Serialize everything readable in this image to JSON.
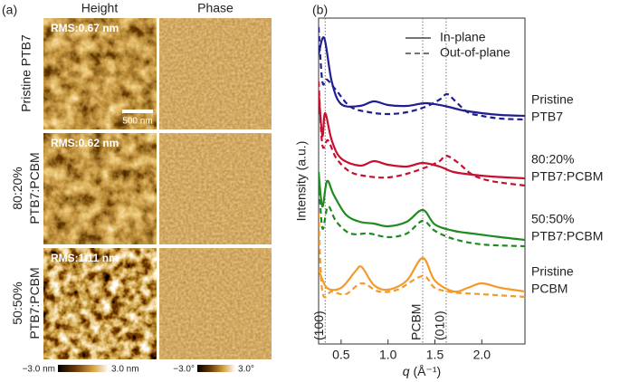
{
  "panel_a": {
    "label": "(a)",
    "columns": [
      "Height",
      "Phase"
    ],
    "rows": [
      {
        "label": [
          "Pristine PTB7"
        ],
        "rms": "RMS:0.67 nm"
      },
      {
        "label": [
          "80:20%",
          "PTB7:PCBM"
        ],
        "rms": "RMS:0.62 nm"
      },
      {
        "label": [
          "50:50%",
          "PTB7:PCBM"
        ],
        "rms": "RMS:1.11 nm"
      }
    ],
    "scale_bar": "500 nm",
    "colorbars": [
      [
        "−3.0 nm",
        "3.0 nm"
      ],
      [
        "−3.0°",
        "3.0°"
      ]
    ]
  },
  "chart_data": {
    "type": "line",
    "panel_label": "(b)",
    "xlabel": {
      "symbol": "q",
      "unit": "(Å⁻¹)"
    },
    "ylabel": "Intensity (a.u.)",
    "xlim": [
      0.26,
      2.46
    ],
    "ylim": [
      0,
      36
    ],
    "xticks": [
      0.5,
      {
        "value": 1,
        "label": "1.0"
      },
      1.5,
      {
        "value": 2,
        "label": "2.0"
      }
    ],
    "legend_position": "upper right",
    "series": [
      {
        "name": "In-plane",
        "color": "#1f1f8f",
        "dashed": false,
        "x": [
          0.26,
          0.32,
          0.4,
          0.5,
          0.7,
          0.85,
          1.0,
          1.2,
          1.4,
          1.6,
          1.8,
          2.0,
          2.2,
          2.46
        ],
        "values": [
          32,
          33.8,
          29,
          26.5,
          26.3,
          26.8,
          26.4,
          26.3,
          26.6,
          26.3,
          25.8,
          25.5,
          25.3,
          25.2
        ]
      },
      {
        "name": "Out-of-plane",
        "color": "#1f1f8f",
        "dashed": true,
        "x": [
          0.26,
          0.3,
          0.35,
          0.45,
          0.6,
          0.8,
          1.0,
          1.2,
          1.4,
          1.55,
          1.63,
          1.72,
          1.85,
          2.0,
          2.2,
          2.46
        ],
        "values": [
          35,
          29,
          29.2,
          28,
          26.2,
          25.6,
          25.4,
          25.6,
          26.2,
          27,
          27.6,
          26.8,
          25.6,
          25.2,
          24.9,
          24.8
        ]
      },
      {
        "name": "In-plane",
        "color": "#c8102e",
        "dashed": false,
        "x": [
          0.26,
          0.3,
          0.33,
          0.4,
          0.5,
          0.7,
          0.85,
          1.0,
          1.2,
          1.37,
          1.55,
          1.7,
          1.9,
          2.1,
          2.46
        ],
        "values": [
          28,
          23,
          25.5,
          22.5,
          20.5,
          19.7,
          20.2,
          19.8,
          19.6,
          20,
          19.6,
          19,
          18.7,
          18.5,
          18.3
        ]
      },
      {
        "name": "Out-of-plane",
        "color": "#c8102e",
        "dashed": true,
        "x": [
          0.26,
          0.3,
          0.36,
          0.45,
          0.6,
          0.8,
          1.0,
          1.2,
          1.4,
          1.55,
          1.62,
          1.75,
          1.9,
          2.1,
          2.46
        ],
        "values": [
          29,
          22,
          22.5,
          20.5,
          19,
          18.5,
          18.4,
          18.8,
          19.5,
          20.2,
          20.8,
          20,
          18.7,
          18,
          17.5
        ]
      },
      {
        "name": "In-plane",
        "color": "#1f8a1f",
        "dashed": false,
        "x": [
          0.26,
          0.3,
          0.35,
          0.42,
          0.55,
          0.7,
          0.85,
          1.0,
          1.2,
          1.37,
          1.5,
          1.7,
          1.9,
          2.2,
          2.46
        ],
        "values": [
          19,
          15.2,
          18,
          16.5,
          14.3,
          13.5,
          13.3,
          13,
          13.5,
          14.8,
          13.2,
          12.5,
          12.2,
          11.8,
          11.5
        ]
      },
      {
        "name": "Out-of-plane",
        "color": "#1f8a1f",
        "dashed": true,
        "x": [
          0.26,
          0.3,
          0.36,
          0.45,
          0.6,
          0.8,
          1.0,
          1.2,
          1.37,
          1.5,
          1.7,
          2.0,
          2.46
        ],
        "values": [
          19,
          12.8,
          15.2,
          13.5,
          12.2,
          12.2,
          11.8,
          12.2,
          13.6,
          12.5,
          11.6,
          11,
          10.8
        ]
      },
      {
        "name": "In-plane",
        "color": "#f39a2b",
        "dashed": false,
        "x": [
          0.26,
          0.35,
          0.5,
          0.65,
          0.72,
          0.85,
          1.0,
          1.2,
          1.37,
          1.5,
          1.7,
          1.85,
          2.0,
          2.2,
          2.46
        ],
        "values": [
          8.2,
          6.2,
          6.2,
          8,
          8.5,
          6.5,
          6,
          7,
          9.5,
          7,
          5.8,
          6.2,
          6.7,
          6.2,
          5.8
        ]
      },
      {
        "name": "Out-of-plane",
        "color": "#f39a2b",
        "dashed": true,
        "x": [
          0.26,
          0.3,
          0.4,
          0.55,
          0.72,
          0.9,
          1.1,
          1.37,
          1.5,
          1.7,
          2.0,
          2.46
        ],
        "values": [
          14.5,
          5.8,
          5.8,
          5.5,
          6.7,
          5.8,
          6,
          7.5,
          6.2,
          5.7,
          5.5,
          5.2
        ]
      }
    ],
    "sample_labels": [
      {
        "lines": [
          "Pristine",
          "PTB7"
        ],
        "y": 26
      },
      {
        "lines": [
          "80:20%",
          "PTB7:PCBM"
        ],
        "y": 19.4
      },
      {
        "lines": [
          "50:50%",
          "PTB7:PCBM"
        ],
        "y": 12.8
      },
      {
        "lines": [
          "Pristine",
          "PCBM"
        ],
        "y": 7
      }
    ],
    "peaks": [
      {
        "label": "(100)",
        "q": 0.33
      },
      {
        "label": "PCBM",
        "q": 1.37
      },
      {
        "label": "(010)",
        "q": 1.62
      }
    ]
  }
}
